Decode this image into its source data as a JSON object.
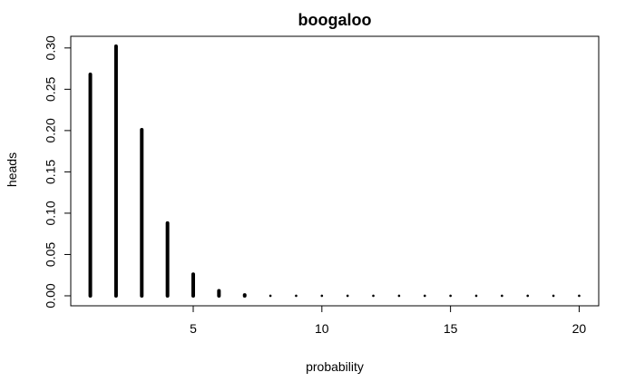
{
  "chart_data": {
    "type": "bar",
    "title": "boogaloo",
    "xlabel": "probability",
    "ylabel": "heads",
    "x": [
      1,
      2,
      3,
      4,
      5,
      6,
      7,
      8,
      9,
      10,
      11,
      12,
      13,
      14,
      15,
      16,
      17,
      18,
      19,
      20
    ],
    "values": [
      0.268,
      0.302,
      0.201,
      0.088,
      0.026,
      0.006,
      0.001,
      0.0001,
      0,
      0,
      0,
      0,
      0,
      0,
      0,
      0,
      0,
      0,
      0,
      0
    ],
    "xlim": [
      0.24,
      20.76
    ],
    "ylim": [
      -0.0121,
      0.3141
    ],
    "x_ticks": [
      5,
      10,
      15,
      20
    ],
    "y_ticks": [
      0.0,
      0.05,
      0.1,
      0.15,
      0.2,
      0.25,
      0.3
    ],
    "x_tick_labels": [
      "5",
      "10",
      "15",
      "20"
    ],
    "y_tick_labels": [
      "0.00",
      "0.05",
      "0.10",
      "0.15",
      "0.20",
      "0.25",
      "0.30"
    ],
    "grid": false,
    "colors": {
      "bars": "#000000",
      "axes": "#000000",
      "background": "#ffffff"
    }
  }
}
